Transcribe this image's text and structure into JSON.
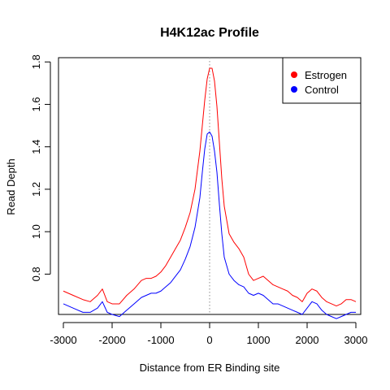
{
  "chart_data": {
    "type": "line",
    "title": "H4K12ac Profile",
    "xlabel": "Distance from ER Binding site",
    "ylabel": "Read Depth",
    "xlim": [
      -3100,
      3100
    ],
    "ylim": [
      0.61,
      1.82
    ],
    "xticks": [
      -3000,
      -2000,
      -1000,
      0,
      1000,
      2000,
      3000
    ],
    "yticks": [
      0.8,
      1.0,
      1.2,
      1.4,
      1.6,
      1.8
    ],
    "vline": {
      "x": 0,
      "color": "#a0a0a0",
      "style": "dotted"
    },
    "legend": {
      "position": "top-right"
    },
    "series": [
      {
        "name": "Estrogen",
        "color": "#ff0000",
        "x": [
          -3000,
          -2800,
          -2600,
          -2450,
          -2300,
          -2200,
          -2100,
          -2000,
          -1850,
          -1700,
          -1550,
          -1400,
          -1300,
          -1200,
          -1100,
          -1000,
          -900,
          -800,
          -700,
          -600,
          -500,
          -400,
          -300,
          -200,
          -150,
          -100,
          -50,
          0,
          50,
          100,
          150,
          200,
          250,
          300,
          400,
          500,
          600,
          700,
          800,
          900,
          1000,
          1100,
          1200,
          1300,
          1400,
          1500,
          1600,
          1700,
          1800,
          1900,
          2000,
          2100,
          2200,
          2300,
          2400,
          2500,
          2600,
          2700,
          2800,
          2900,
          3000
        ],
        "values": [
          0.72,
          0.7,
          0.68,
          0.67,
          0.7,
          0.73,
          0.67,
          0.66,
          0.66,
          0.7,
          0.73,
          0.77,
          0.78,
          0.78,
          0.79,
          0.81,
          0.84,
          0.88,
          0.92,
          0.96,
          1.02,
          1.09,
          1.2,
          1.38,
          1.5,
          1.62,
          1.72,
          1.77,
          1.77,
          1.71,
          1.59,
          1.42,
          1.25,
          1.12,
          0.99,
          0.95,
          0.92,
          0.88,
          0.8,
          0.77,
          0.78,
          0.79,
          0.77,
          0.75,
          0.74,
          0.73,
          0.72,
          0.7,
          0.69,
          0.67,
          0.71,
          0.73,
          0.72,
          0.69,
          0.67,
          0.66,
          0.65,
          0.66,
          0.68,
          0.68,
          0.67
        ]
      },
      {
        "name": "Control",
        "color": "#0000ff",
        "x": [
          -3000,
          -2800,
          -2600,
          -2450,
          -2300,
          -2200,
          -2100,
          -2000,
          -1850,
          -1700,
          -1550,
          -1400,
          -1300,
          -1200,
          -1100,
          -1000,
          -900,
          -800,
          -700,
          -600,
          -500,
          -400,
          -300,
          -200,
          -150,
          -100,
          -50,
          0,
          50,
          100,
          150,
          200,
          250,
          300,
          400,
          500,
          600,
          700,
          800,
          900,
          1000,
          1100,
          1200,
          1300,
          1400,
          1500,
          1600,
          1700,
          1800,
          1900,
          2000,
          2100,
          2200,
          2300,
          2400,
          2500,
          2600,
          2700,
          2800,
          2900,
          3000
        ],
        "values": [
          0.66,
          0.64,
          0.62,
          0.62,
          0.64,
          0.67,
          0.62,
          0.61,
          0.6,
          0.63,
          0.66,
          0.69,
          0.7,
          0.71,
          0.71,
          0.72,
          0.74,
          0.76,
          0.79,
          0.82,
          0.87,
          0.93,
          1.02,
          1.16,
          1.28,
          1.39,
          1.46,
          1.47,
          1.45,
          1.38,
          1.28,
          1.13,
          0.99,
          0.88,
          0.8,
          0.77,
          0.75,
          0.74,
          0.71,
          0.7,
          0.71,
          0.7,
          0.68,
          0.66,
          0.66,
          0.65,
          0.64,
          0.63,
          0.62,
          0.61,
          0.64,
          0.67,
          0.66,
          0.63,
          0.61,
          0.6,
          0.59,
          0.6,
          0.61,
          0.62,
          0.62
        ]
      }
    ]
  }
}
